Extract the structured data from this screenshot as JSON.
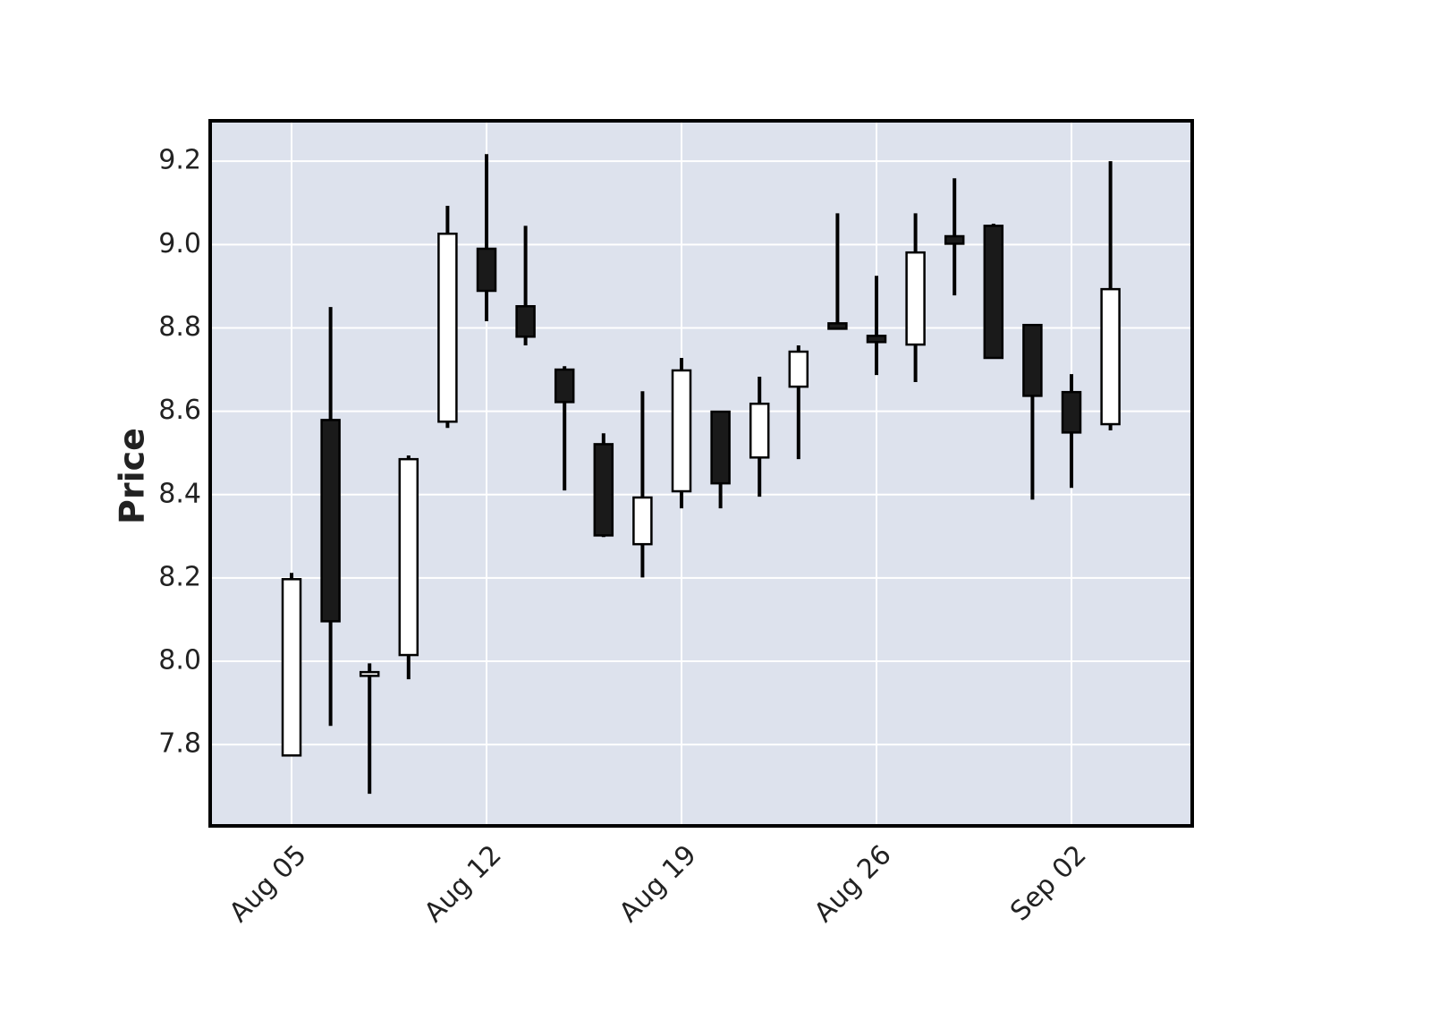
{
  "chart_data": {
    "type": "candlestick",
    "y_label": "Price",
    "categories": [
      "Aug 05",
      null,
      null,
      null,
      null,
      "Aug 12",
      null,
      null,
      null,
      null,
      "Aug 19",
      null,
      null,
      null,
      null,
      "Aug 26",
      null,
      null,
      null,
      null,
      "Sep 02",
      null
    ],
    "open": [
      7.774,
      8.579,
      7.965,
      8.015,
      8.575,
      8.99,
      8.852,
      8.7,
      8.521,
      8.281,
      8.408,
      8.599,
      8.489,
      8.659,
      8.811,
      8.781,
      8.76,
      9.02,
      9.045,
      8.807,
      8.646,
      8.569
    ],
    "high": [
      8.212,
      8.85,
      7.995,
      8.494,
      9.093,
      9.217,
      9.045,
      8.708,
      8.547,
      8.648,
      8.728,
      8.599,
      8.683,
      8.758,
      9.075,
      8.925,
      9.075,
      9.159,
      9.05,
      8.807,
      8.689,
      9.2
    ],
    "low": [
      7.774,
      7.845,
      7.682,
      7.957,
      8.56,
      8.816,
      8.758,
      8.41,
      8.298,
      8.201,
      8.367,
      8.367,
      8.395,
      8.485,
      8.798,
      8.687,
      8.67,
      8.878,
      8.728,
      8.388,
      8.416,
      8.554
    ],
    "close": [
      8.197,
      8.096,
      7.974,
      8.485,
      9.026,
      8.889,
      8.779,
      8.622,
      8.302,
      8.393,
      8.698,
      8.427,
      8.618,
      8.743,
      8.798,
      8.766,
      8.981,
      9.002,
      8.728,
      8.637,
      8.549,
      8.893
    ],
    "up_color": "#ffffff",
    "down_color": "#1a1a1a",
    "edge_color": "#000000",
    "background": "#dde2ed",
    "ylim": [
      7.605,
      9.297
    ],
    "yticks": [
      7.8,
      {
        "value": 8,
        "label": "8.0"
      },
      8.2,
      8.4,
      8.6,
      8.8,
      {
        "value": 9,
        "label": "9.0"
      },
      9.2
    ],
    "grid": true
  }
}
